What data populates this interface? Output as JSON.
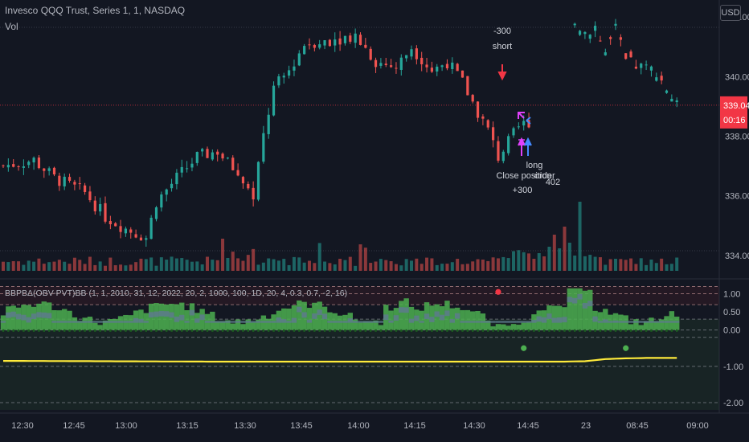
{
  "header": {
    "title": "Invesco QQQ Trust, Series 1, 1, NASDAQ",
    "volume_label": "Vol",
    "currency": "USD"
  },
  "price_badge": {
    "price": "339.04",
    "countdown": "00:16",
    "color": "#f23645"
  },
  "indicator": {
    "label": "BBPBΔ(OBV-PVT)BB (1, 1, 2010, 31, 12, 2022, 20, 2, 1000, 100, 1D, 20, 4, 0.3, 0.7, -2, 16)"
  },
  "annotations": {
    "short_qty": "-300",
    "short_label": "short",
    "close_label": "Close position",
    "order_label": "order",
    "long_label": "long",
    "long_qty": "+300",
    "long_num": "402"
  },
  "colors": {
    "up": "#26a69a",
    "down": "#ef5350",
    "signal_yellow": "#ffeb3b",
    "hist_green": "#4caf50",
    "hist_gray": "#5d7a8c",
    "dot_green": "#4caf50",
    "dot_red": "#f23645"
  },
  "chart_data": [
    {
      "type": "candlestick",
      "x_ticks": [
        "12:30",
        "12:45",
        "13:00",
        "13:15",
        "13:30",
        "13:45",
        "14:00",
        "14:15",
        "14:30",
        "14:45",
        "23",
        "08:45",
        "09:00"
      ],
      "y_ticks": [
        334.0,
        336.0,
        338.0,
        340.0,
        342.0
      ],
      "ylim": [
        333.4,
        342.3
      ],
      "last_price": 339.04,
      "close_path": [
        [
          0,
          337.0
        ],
        [
          6,
          337.2
        ],
        [
          10,
          336.6
        ],
        [
          16,
          336.1
        ],
        [
          20,
          335.3
        ],
        [
          24,
          334.9
        ],
        [
          28,
          334.6
        ],
        [
          30,
          335.8
        ],
        [
          34,
          336.6
        ],
        [
          38,
          337.3
        ],
        [
          42,
          337.5
        ],
        [
          46,
          336.7
        ],
        [
          49,
          336.0
        ],
        [
          51,
          338.0
        ],
        [
          53,
          339.6
        ],
        [
          56,
          340.2
        ],
        [
          59,
          341.1
        ],
        [
          62,
          341.2
        ],
        [
          66,
          341.3
        ],
        [
          69,
          341.4
        ],
        [
          73,
          340.5
        ],
        [
          77,
          340.3
        ],
        [
          80,
          341.0
        ],
        [
          84,
          340.2
        ],
        [
          87,
          340.5
        ],
        [
          90,
          339.8
        ],
        [
          93,
          338.8
        ],
        [
          95,
          338.2
        ],
        [
          97,
          337.3
        ],
        [
          99,
          337.8
        ],
        [
          101,
          338.3
        ],
        [
          103,
          338.5
        ]
      ],
      "gap_close_path": [
        [
          112,
          341.8
        ],
        [
          114,
          341.5
        ],
        [
          116,
          341.7
        ],
        [
          118,
          340.8
        ],
        [
          120,
          341.6
        ],
        [
          122,
          340.5
        ],
        [
          125,
          340.3
        ],
        [
          128,
          340.2
        ],
        [
          130,
          339.6
        ],
        [
          132,
          339.0
        ]
      ]
    },
    {
      "type": "bar",
      "series": [
        {
          "values_pattern": "volume"
        }
      ],
      "note": ""
    },
    {
      "type": "area",
      "y_ticks": [
        1.0,
        0.5,
        0.0,
        -1.0,
        -2.0
      ],
      "ylim": [
        -2.2,
        1.3
      ],
      "hlines": [
        1.2,
        1.0,
        0.7,
        0.3,
        0.0,
        -0.2,
        -1.0,
        -2.0
      ],
      "signal_line": [
        [
          0,
          -0.85
        ],
        [
          20,
          -0.86
        ],
        [
          40,
          -0.87
        ],
        [
          60,
          -0.87
        ],
        [
          80,
          -0.87
        ],
        [
          100,
          -0.87
        ],
        [
          110,
          -0.87
        ],
        [
          114,
          -0.86
        ],
        [
          118,
          -0.8
        ],
        [
          122,
          -0.78
        ],
        [
          126,
          -0.77
        ],
        [
          132,
          -0.77
        ]
      ],
      "dots": [
        {
          "x": 97,
          "y": 1.05,
          "color": "red"
        },
        {
          "x": 102,
          "y": -0.5,
          "color": "green"
        },
        {
          "x": 122,
          "y": -0.5,
          "color": "green"
        }
      ]
    }
  ]
}
